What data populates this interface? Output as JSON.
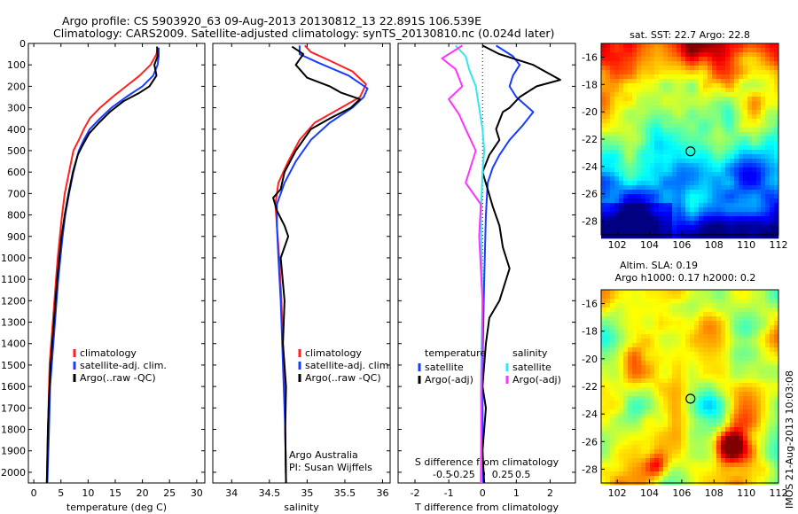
{
  "header": {
    "line1": "Argo profile: CS 5903920_63 09-Aug-2013 20130812_13 22.891S 106.539E",
    "line2": "Climatology: CARS2009. Satellite-adjusted climatology: synTS_20130810.nc (0.024d later)"
  },
  "timestamp": "IMOS 21-Aug-2013 10:03:08",
  "colors": {
    "climatology": "#ff2020",
    "satellite": "#1a3cff",
    "argo": "#000000",
    "satellite_salinity": "#33e6f0",
    "argo_salinity": "#ff33ff"
  },
  "chart_data": [
    {
      "type": "line",
      "id": "temperature",
      "xlabel": "temperature (deg C)",
      "ylabel": "",
      "xlim": [
        -1,
        31.5
      ],
      "ylim": [
        2050,
        0
      ],
      "x_ticks": [
        0,
        5,
        10,
        15,
        20,
        25,
        30
      ],
      "y_ticks": [
        0,
        100,
        200,
        300,
        400,
        500,
        600,
        700,
        800,
        900,
        1000,
        1100,
        1200,
        1300,
        1400,
        1500,
        1600,
        1700,
        1800,
        1900,
        2000
      ],
      "legend": [
        "climatology",
        "satellite-adj. clim.",
        "Argo(..raw -QC)"
      ],
      "series": [
        {
          "name": "climatology",
          "color_key": "climatology",
          "x": [
            22.8,
            22.6,
            21.5,
            19.5,
            17.0,
            14.5,
            12.2,
            10.3,
            9.2,
            8.3,
            7.3,
            6.5,
            5.7,
            5.2,
            4.8,
            4.4,
            4.1,
            3.8,
            3.5,
            3.2,
            2.9,
            2.7,
            2.4
          ],
          "y": [
            20,
            50,
            100,
            150,
            200,
            250,
            300,
            350,
            400,
            450,
            500,
            600,
            700,
            800,
            900,
            1000,
            1100,
            1200,
            1300,
            1400,
            1500,
            1700,
            2050
          ]
        },
        {
          "name": "satellite-adj. clim.",
          "color_key": "satellite",
          "x": [
            23.0,
            23.0,
            22.8,
            22.0,
            20.0,
            17.0,
            14.3,
            12.2,
            10.3,
            9.2,
            8.3,
            7.3,
            6.5,
            5.8,
            5.3,
            4.9,
            4.5,
            4.2,
            3.9,
            3.6,
            3.3,
            3.0,
            2.8,
            2.5
          ],
          "y": [
            20,
            60,
            100,
            150,
            200,
            250,
            300,
            350,
            400,
            450,
            500,
            600,
            700,
            800,
            900,
            1000,
            1100,
            1200,
            1300,
            1400,
            1500,
            1600,
            1800,
            2050
          ]
        },
        {
          "name": "Argo(..raw -QC)",
          "color_key": "argo",
          "x": [
            22.7,
            22.8,
            22.2,
            22.6,
            21.3,
            19.5,
            16.5,
            14.0,
            12.0,
            10.2,
            9.1,
            8.1,
            7.2,
            6.4,
            5.7,
            5.1,
            4.7,
            4.3,
            4.0,
            3.7,
            3.4,
            3.1,
            2.8,
            2.6,
            2.4
          ],
          "y": [
            15,
            60,
            100,
            150,
            200,
            230,
            270,
            320,
            370,
            420,
            470,
            520,
            600,
            700,
            800,
            900,
            1000,
            1100,
            1200,
            1300,
            1400,
            1500,
            1650,
            1800,
            2050
          ]
        }
      ]
    },
    {
      "type": "line",
      "id": "salinity",
      "xlabel": "salinity",
      "ylabel": "",
      "xlim": [
        33.75,
        36.1
      ],
      "ylim": [
        2050,
        0
      ],
      "x_ticks": [
        34,
        34.5,
        35,
        35.5,
        36
      ],
      "x_tick_labels": [
        "34",
        "34.5",
        "35",
        "35.5",
        "36"
      ],
      "legend": [
        "climatology",
        "satellite-adj. clim.",
        "Argo(..raw -QC)"
      ],
      "annotations": [
        "Argo Australia",
        "PI: Susan Wijffels"
      ],
      "series": [
        {
          "name": "climatology",
          "color_key": "climatology",
          "x": [
            34.97,
            35.05,
            35.3,
            35.6,
            35.78,
            35.7,
            35.45,
            35.1,
            34.9,
            34.75,
            34.62,
            34.58,
            34.6,
            34.63,
            34.66,
            34.68,
            34.7,
            34.71,
            34.72
          ],
          "y": [
            10,
            40,
            80,
            130,
            190,
            250,
            300,
            370,
            450,
            550,
            650,
            750,
            850,
            1000,
            1200,
            1400,
            1600,
            1800,
            2050
          ]
        },
        {
          "name": "satellite-adj. clim.",
          "color_key": "satellite",
          "x": [
            34.9,
            34.9,
            35.15,
            35.55,
            35.8,
            35.75,
            35.6,
            35.3,
            35.05,
            34.85,
            34.7,
            34.6,
            34.6,
            34.62,
            34.65,
            34.67,
            34.69,
            34.71,
            34.72
          ],
          "y": [
            10,
            50,
            90,
            150,
            210,
            250,
            300,
            370,
            450,
            550,
            650,
            750,
            850,
            1000,
            1200,
            1400,
            1600,
            1800,
            2050
          ]
        },
        {
          "name": "Argo(..raw -QC)",
          "color_key": "argo",
          "x": [
            34.8,
            34.95,
            34.85,
            35.0,
            35.3,
            35.45,
            35.7,
            35.58,
            35.3,
            35.05,
            34.85,
            34.7,
            34.65,
            34.55,
            34.6,
            34.7,
            34.75,
            34.65,
            34.7,
            34.68,
            34.72,
            34.71,
            34.72
          ],
          "y": [
            15,
            50,
            100,
            160,
            200,
            230,
            260,
            300,
            350,
            400,
            500,
            600,
            680,
            720,
            780,
            850,
            900,
            1000,
            1200,
            1400,
            1600,
            1800,
            2050
          ]
        }
      ]
    },
    {
      "type": "line",
      "id": "difference",
      "xlabel": "T difference from climatology",
      "top_label": "S difference from climatology",
      "xlim": [
        -2.5,
        2.75
      ],
      "ylim": [
        2050,
        0
      ],
      "x_ticks": [
        -2,
        -1,
        0,
        1,
        2
      ],
      "s_ticks": [
        -0.5,
        -0.25,
        0,
        0.25,
        0.5
      ],
      "s_tick_labels": [
        "-0.5",
        "-0.25",
        "0",
        "0.25",
        "0.5"
      ],
      "legend_temperature_title": "temperature",
      "legend_salinity_title": "salinity",
      "legend_temperature": [
        "satellite",
        "Argo(-adj)"
      ],
      "legend_salinity": [
        "satellite",
        "Argo(-adj)"
      ],
      "series": [
        {
          "name": "satellite",
          "color_key": "satellite",
          "x": [
            0.4,
            0.9,
            1.1,
            0.9,
            0.8,
            1.0,
            1.5,
            1.2,
            0.8,
            0.5,
            0.3,
            0.15,
            0.1,
            0.05,
            0.0,
            0.0
          ],
          "y": [
            10,
            60,
            100,
            150,
            200,
            250,
            320,
            380,
            450,
            520,
            580,
            650,
            800,
            1100,
            1500,
            2050
          ]
        },
        {
          "name": "Argo(-adj)",
          "color_key": "argo",
          "x": [
            0.0,
            0.5,
            1.5,
            2.3,
            1.6,
            1.1,
            0.8,
            0.6,
            0.4,
            0.5,
            0.2,
            0.0,
            0.15,
            0.3,
            0.5,
            0.6,
            0.8,
            0.6,
            0.5,
            0.2,
            0.1,
            0.0,
            0.1,
            0.0,
            0.05
          ],
          "y": [
            10,
            50,
            100,
            170,
            200,
            250,
            300,
            320,
            400,
            450,
            520,
            600,
            680,
            760,
            850,
            950,
            1050,
            1150,
            1200,
            1280,
            1400,
            1600,
            1700,
            1900,
            2050
          ]
        },
        {
          "name": "satellite",
          "color_key": "satellite_salinity",
          "x": [
            -0.8,
            -0.5,
            -0.4,
            -0.2,
            -0.1,
            0.0,
            0.05,
            0.0,
            -0.05,
            0.0,
            -0.05,
            -0.03
          ],
          "y": [
            10,
            60,
            120,
            200,
            300,
            400,
            500,
            600,
            800,
            1200,
            1600,
            2050
          ]
        },
        {
          "name": "Argo(-adj)",
          "color_key": "argo_salinity",
          "x": [
            -0.6,
            -1.2,
            -0.8,
            -0.6,
            -1.0,
            -0.7,
            -0.5,
            -0.2,
            -0.5,
            -0.05,
            -0.1,
            0.0,
            -0.05
          ],
          "y": [
            10,
            70,
            120,
            200,
            260,
            330,
            400,
            500,
            650,
            750,
            900,
            1200,
            2050
          ]
        }
      ]
    },
    {
      "type": "heatmap",
      "id": "sst-map",
      "title": "sat. SST: 22.7 Argo: 22.8",
      "xlim": [
        101,
        112
      ],
      "ylim": [
        -29,
        -15
      ],
      "x_ticks": [
        102,
        104,
        106,
        108,
        110,
        112
      ],
      "y_ticks": [
        -16,
        -18,
        -20,
        -22,
        -24,
        -26,
        -28
      ],
      "marker": {
        "lon": 106.54,
        "lat": -22.89
      }
    },
    {
      "type": "heatmap",
      "id": "sla-map",
      "title_line1": "Altim. SLA: 0.19",
      "title_line2": "Argo h1000: 0.17 h2000: 0.2",
      "xlim": [
        101,
        112
      ],
      "ylim": [
        -29,
        -15
      ],
      "x_ticks": [
        102,
        104,
        106,
        108,
        110,
        112
      ],
      "y_ticks": [
        -16,
        -18,
        -20,
        -22,
        -24,
        -26,
        -28
      ],
      "marker": {
        "lon": 106.54,
        "lat": -22.89
      }
    }
  ]
}
